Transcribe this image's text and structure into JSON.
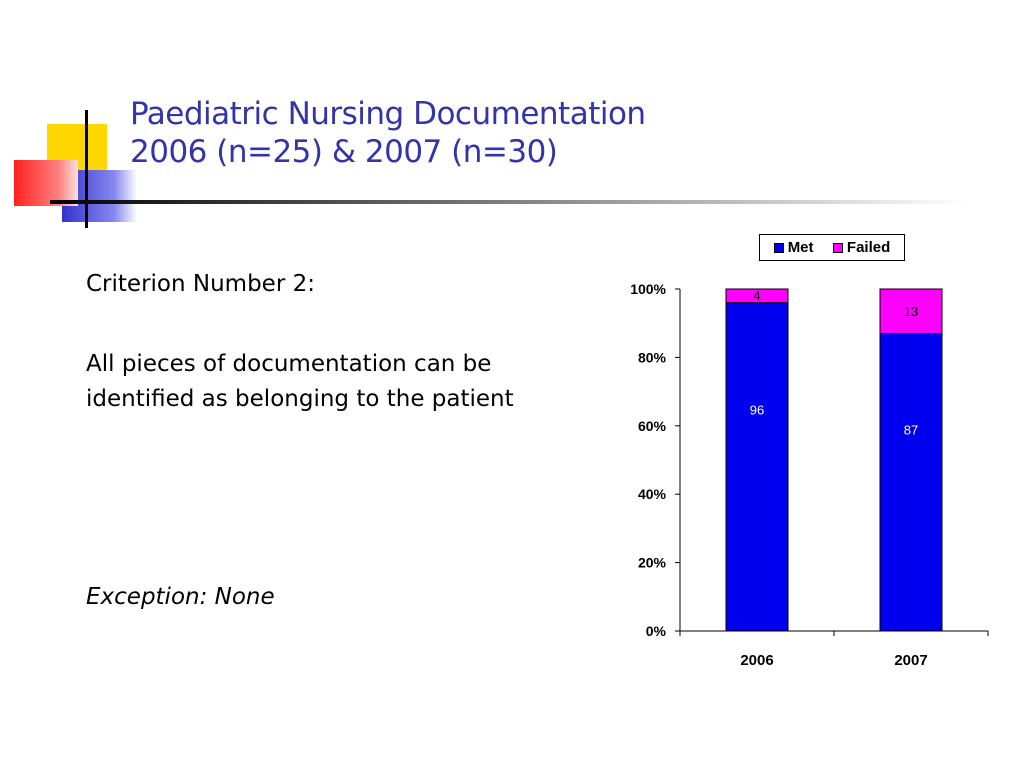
{
  "slide": {
    "title_line1": "Paediatric Nursing Documentation",
    "title_line2": "2006 (n=25) & 2007 (n=30)",
    "criterion": "Criterion Number 2:",
    "description": "All pieces of documentation can be identified as belonging to the patient",
    "exception": "Exception: None"
  },
  "colors": {
    "title": "#3333aa",
    "met": "#0000ee",
    "failed": "#ff00ff"
  },
  "chart_data": {
    "type": "bar",
    "stacked": true,
    "categories": [
      "2006",
      "2007"
    ],
    "series": [
      {
        "name": "Met",
        "values": [
          96,
          87
        ],
        "color": "#0000ee"
      },
      {
        "name": "Failed",
        "values": [
          4,
          13
        ],
        "color": "#ff00ff"
      }
    ],
    "ylim": [
      0,
      100
    ],
    "y_ticks": [
      "0%",
      "20%",
      "40%",
      "60%",
      "80%",
      "100%"
    ],
    "legend": "top-right"
  }
}
